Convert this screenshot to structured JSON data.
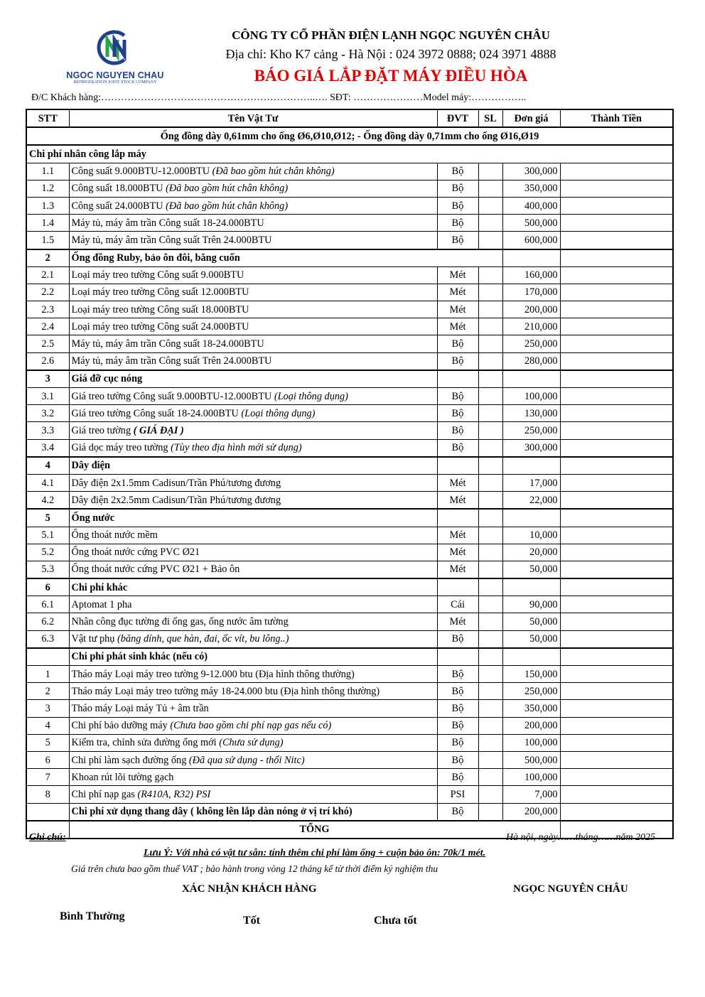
{
  "company": {
    "name": "CÔNG TY CỔ PHẦN ĐIỆN LẠNH NGỌC NGUYÊN CHÂU",
    "address": "Địa chỉ: Kho K7 cảng - Hà Nội : 024 3972 0888; 024 3971 4888",
    "doc_title": "BÁO GIÁ  LẮP ĐẶT MÁY ĐIỀU HÒA",
    "logo_text": "NGOC NGUYEN CHAU",
    "logo_sub": "REFRIGERATION JOINT STOCK COMPANY"
  },
  "customer_line": "Đ/C Khách hàng:………………………………………………………..…. SĐT: …………………Model máy:……………..",
  "columns": [
    "STT",
    "Tên Vật Tư",
    "ĐVT",
    "SL",
    "Đơn giá",
    "Thành Tiền"
  ],
  "note_row": "Ống đồng dày 0,61mm cho ống Ø6,Ø10,Ø12;  - Ống đồng dày 0,71mm cho ống Ø16,Ø19",
  "sections": [
    {
      "stt": "",
      "title": "Chi phí nhân công lắp máy",
      "items": [
        {
          "stt": "1.1",
          "name": "Công suất 9.000BTU-12.000BTU ",
          "note": "(Đã bao gồm hút chân không)",
          "unit": "Bộ",
          "price": "300,000"
        },
        {
          "stt": "1.2",
          "name": "Công suất 18.000BTU ",
          "note": "(Đã bao gồm hút chân không)",
          "unit": "Bộ",
          "price": "350,000"
        },
        {
          "stt": "1.3",
          "name": "Công suất 24.000BTU ",
          "note": "(Đã bao gồm hút chân không)",
          "unit": "Bộ",
          "price": "400,000"
        },
        {
          "stt": "1.4",
          "name": "Máy tủ, máy âm trần Công suất 18-24.000BTU",
          "note": "",
          "unit": "Bộ",
          "price": "500,000"
        },
        {
          "stt": "1.5",
          "name": "Máy tủ, máy âm trần Công suất Trên 24.000BTU",
          "note": "",
          "unit": "Bộ",
          "price": "600,000"
        }
      ]
    },
    {
      "stt": "2",
      "title": "Ống đồng Ruby, bảo ôn đôi, băng cuốn",
      "items": [
        {
          "stt": "2.1",
          "name": "Loại máy treo tường Công suất 9.000BTU",
          "note": "",
          "unit": "Mét",
          "price": "160,000"
        },
        {
          "stt": "2.2",
          "name": "Loại máy treo tường Công suất 12.000BTU",
          "note": "",
          "unit": "Mét",
          "price": "170,000"
        },
        {
          "stt": "2.3",
          "name": "Loại máy treo tường Công suất 18.000BTU",
          "note": "",
          "unit": "Mét",
          "price": "200,000"
        },
        {
          "stt": "2.4",
          "name": "Loại máy treo tường Công suất 24.000BTU",
          "note": "",
          "unit": "Mét",
          "price": "210,000"
        },
        {
          "stt": "2.5",
          "name": "Máy tủ, máy âm trần Công suất 18-24.000BTU",
          "note": "",
          "unit": "Bộ",
          "price": "250,000"
        },
        {
          "stt": "2.6",
          "name": "Máy tủ, máy âm trần Công suất Trên 24.000BTU",
          "note": "",
          "unit": "Bộ",
          "price": "280,000"
        }
      ]
    },
    {
      "stt": "3",
      "title": "Giá đỡ cục nóng",
      "items": [
        {
          "stt": "3.1",
          "name": "Giá treo tường Công suất 9.000BTU-12.000BTU ",
          "note": "(Loại thông dụng)",
          "unit": "Bộ",
          "price": "100,000"
        },
        {
          "stt": "3.2",
          "name": "Giá treo tường Công suất 18-24.000BTU ",
          "note": "(Loại thông dụng)",
          "unit": "Bộ",
          "price": "130,000"
        },
        {
          "stt": "3.3",
          "name": "Giá treo tường ",
          "note": "( GIÁ ĐẠI )",
          "note_bold": true,
          "unit": "Bộ",
          "price": "250,000"
        },
        {
          "stt": "3.4",
          "name": "Giá dọc máy treo tường ",
          "note": "(Tùy theo địa hình mới sử dụng)",
          "unit": "Bộ",
          "price": "300,000"
        }
      ]
    },
    {
      "stt": "4",
      "title": "Dây điện",
      "items": [
        {
          "stt": "4.1",
          "name": "Dây điện 2x1.5mm Cadisun/Trần Phú/tương đương",
          "note": "",
          "unit": "Mét",
          "price": "17,000"
        },
        {
          "stt": "4.2",
          "name": "Dây điện 2x2.5mm Cadisun/Trần Phú/tương đương",
          "note": "",
          "unit": "Mét",
          "price": "22,000"
        }
      ]
    },
    {
      "stt": "5",
      "title": "Ống nước",
      "items": [
        {
          "stt": "5.1",
          "name": "Ống thoát nước mềm",
          "note": "",
          "unit": "Mét",
          "price": "10,000"
        },
        {
          "stt": "5.2",
          "name": "Ống thoát nước cứng PVC Ø21",
          "note": "",
          "unit": "Mét",
          "price": "20,000"
        },
        {
          "stt": "5.3",
          "name": "Ống thoát nước cứng PVC Ø21 + Bảo ôn",
          "note": "",
          "unit": "Mét",
          "price": "50,000"
        }
      ]
    },
    {
      "stt": "6",
      "title": "Chi phí khác",
      "items": [
        {
          "stt": "6.1",
          "name": "Aptomat 1 pha",
          "note": "",
          "unit": "Cái",
          "price": "90,000"
        },
        {
          "stt": "6.2",
          "name": "Nhân công đục tường đi ống gas, ống nước âm tường",
          "note": "",
          "unit": "Mét",
          "price": "50,000"
        },
        {
          "stt": "6.3",
          "name": "Vật tư phụ ",
          "note": "(băng dính, que hàn, đai, ốc vít, bu lông..)",
          "unit": "Bộ",
          "price": "50,000"
        }
      ]
    },
    {
      "stt": "",
      "title": "Chi phí phát sinh khác (nếu có)",
      "items": [
        {
          "stt": "1",
          "name": "Tháo máy Loại máy treo tường 9-12.000  btu (Địa hình thông thường)",
          "note": "",
          "unit": "Bộ",
          "price": "150,000"
        },
        {
          "stt": "2",
          "name": "Tháo máy Loại máy treo tường máy 18-24.000 btu (Địa hình thông thường)",
          "note": "",
          "unit": "Bộ",
          "price": "250,000"
        },
        {
          "stt": "3",
          "name": "Tháo máy Loại máy Tủ + âm trần",
          "note": "",
          "unit": "Bộ",
          "price": "350,000"
        },
        {
          "stt": "4",
          "name": "Chi phí bảo dưỡng máy ",
          "note": "(Chưa bao gồm chi phí nạp gas nếu có)",
          "unit": "Bộ",
          "price": "200,000"
        },
        {
          "stt": "5",
          "name": "Kiểm tra, chỉnh sửa đường ống mới ",
          "note": "(Chưa sử dụng)",
          "unit": "Bộ",
          "price": "100,000"
        },
        {
          "stt": "6",
          "name": "Chi phí làm sạch đường ống ",
          "note": "(Đã qua sử dụng - thổi Nitc)",
          "unit": "Bộ",
          "price": "500,000"
        },
        {
          "stt": "7",
          "name": "Khoan rút lõi tường gạch",
          "note": "",
          "unit": "Bộ",
          "price": "100,000"
        },
        {
          "stt": "8",
          "name": "Chi phí nạp gas ",
          "note": "(R410A, R32) PSI",
          "unit": "PSI",
          "price": "7,000"
        },
        {
          "stt": "",
          "name": "Chi phí xử dụng thang dây ( không lên lắp dàn nóng ở vị trí khó)",
          "note": "",
          "bold": true,
          "unit": "Bộ",
          "price": "200,000"
        }
      ]
    }
  ],
  "total_label": "TỔNG",
  "footer": {
    "ghi_chu": "Ghi chú:",
    "date": "Hà nội, ngày……tháng……năm 2025",
    "luu_y": "Lưu Ý: Với nhà có vật tư sẵn:  tính thêm chi phí làm ống + cuộn bảo ôn: 70k/1 mét.",
    "vat": "Giá trên chưa bao gồm thuế VAT ; bảo hành trong vòng 12 tháng kể từ thời điểm ký nghiệm thu",
    "confirm": "XÁC NHẬN KHÁCH HÀNG",
    "company_sign": "NGỌC NGUYÊN CHÂU",
    "rating": [
      "Bình Thường",
      "Tốt",
      "Chưa tốt"
    ]
  },
  "colors": {
    "title_red": "#e00000",
    "logo_blue": "#1f3f8f",
    "logo_green": "#2aa44a"
  }
}
